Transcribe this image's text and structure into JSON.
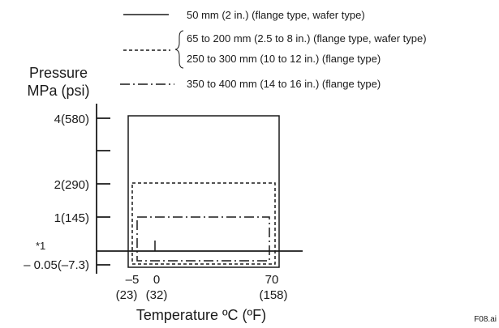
{
  "legend": [
    {
      "style": "solid",
      "lines": [
        "50 mm (2 in.) (flange type, wafer type)"
      ]
    },
    {
      "style": "dashed",
      "lines": [
        "65 to 200 mm (2.5 to 8 in.) (flange type, wafer type)",
        "250 to 300 mm (10 to 12 in.) (flange type)"
      ]
    },
    {
      "style": "dash-dot",
      "lines": [
        "350 to 400 mm (14 to 16 in.) (flange type)"
      ]
    }
  ],
  "y_axis": {
    "title_line1": "Pressure",
    "title_line2": "MPa (psi)",
    "ticks": [
      "4(580)",
      "2(290)",
      "1(145)",
      "*1",
      "– 0.05(–7.3)"
    ]
  },
  "x_axis": {
    "title": "Temperature ºC (ºF)",
    "ticks": [
      {
        "celsius": "–5",
        "fahrenheit": "(23)"
      },
      {
        "celsius": "0",
        "fahrenheit": "(32)"
      },
      {
        "celsius": "70",
        "fahrenheit": "(158)"
      }
    ]
  },
  "regions": [
    {
      "style": "solid",
      "pressure_max_mpa": 4,
      "pressure_min_mpa": -0.05,
      "temp_min_c": -5,
      "temp_max_c": 70
    },
    {
      "style": "dashed",
      "pressure_max_mpa": 2,
      "pressure_min_mpa": -0.05,
      "temp_min_c": -5,
      "temp_max_c": 70
    },
    {
      "style": "dash-dot",
      "pressure_max_mpa": 1,
      "pressure_min_mpa": -0.05,
      "temp_min_c": -5,
      "temp_max_c": 70
    }
  ],
  "figure_id": "F08.ai",
  "colors": {
    "ink": "#1a1a1a"
  }
}
